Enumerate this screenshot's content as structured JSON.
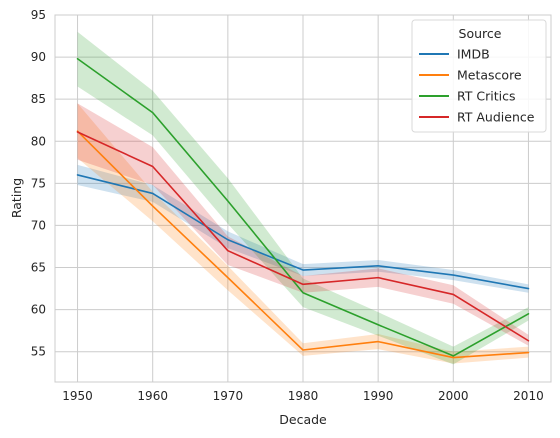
{
  "chart_data": {
    "type": "line",
    "xlabel": "Decade",
    "ylabel": "Rating",
    "x": [
      1950,
      1960,
      1970,
      1980,
      1990,
      2000,
      2010
    ],
    "xticks": [
      1950,
      1960,
      1970,
      1980,
      1990,
      2000,
      2010
    ],
    "yticks": [
      55,
      60,
      65,
      70,
      75,
      80,
      85,
      90,
      95
    ],
    "xlim": [
      1947,
      2013
    ],
    "ylim": [
      51.4,
      95
    ],
    "grid": true,
    "legend": {
      "title": "Source",
      "placement": "top-right"
    },
    "series": [
      {
        "name": "IMDB",
        "color": "#1f77b4",
        "values": [
          76.0,
          73.8,
          68.3,
          64.7,
          65.2,
          64.1,
          62.5
        ],
        "ci_low": [
          74.8,
          72.8,
          67.3,
          64.0,
          64.5,
          63.5,
          62.0
        ],
        "ci_high": [
          77.2,
          74.8,
          69.3,
          65.4,
          65.9,
          64.7,
          63.0
        ]
      },
      {
        "name": "Metascore",
        "color": "#ff7f0e",
        "values": [
          81.2,
          72.3,
          63.8,
          55.2,
          56.2,
          54.3,
          54.9
        ],
        "ci_low": [
          78.0,
          70.5,
          62.3,
          54.5,
          55.3,
          53.6,
          54.3
        ],
        "ci_high": [
          84.5,
          74.0,
          65.2,
          56.0,
          57.1,
          55.0,
          55.6
        ]
      },
      {
        "name": "RT Critics",
        "color": "#2ca02c",
        "values": [
          89.8,
          83.4,
          72.9,
          62.0,
          58.2,
          54.5,
          59.5
        ],
        "ci_low": [
          86.5,
          80.7,
          70.2,
          60.3,
          56.9,
          53.5,
          58.7
        ],
        "ci_high": [
          93.0,
          86.0,
          75.6,
          63.7,
          59.7,
          55.6,
          60.3
        ]
      },
      {
        "name": "RT Audience",
        "color": "#d62728",
        "values": [
          81.1,
          77.0,
          67.0,
          63.0,
          63.8,
          61.8,
          56.3
        ],
        "ci_low": [
          77.8,
          74.8,
          65.3,
          62.0,
          62.7,
          60.7,
          55.7
        ],
        "ci_high": [
          84.5,
          79.3,
          68.7,
          64.0,
          64.9,
          62.9,
          57.0
        ]
      }
    ]
  }
}
